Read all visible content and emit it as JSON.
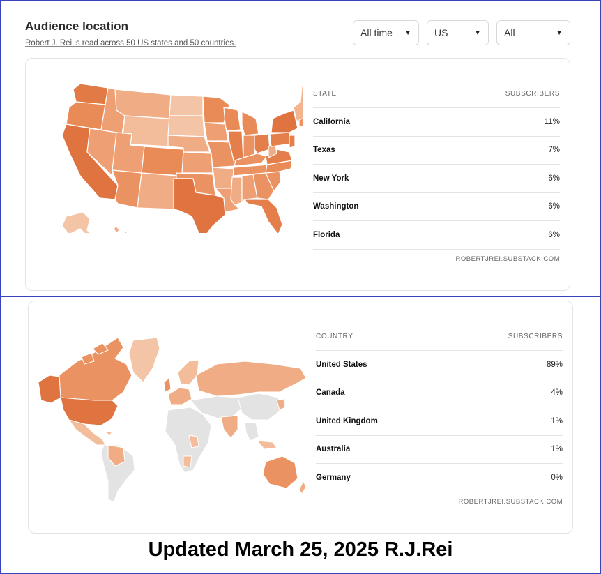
{
  "header": {
    "title": "Audience location",
    "subtitle": "Robert J. Rei is read across 50 US states and 50 countries."
  },
  "filters": [
    {
      "value": "All time"
    },
    {
      "value": "US"
    },
    {
      "value": "All"
    }
  ],
  "us_table": {
    "col_region": "STATE",
    "col_subs": "SUBSCRIBERS",
    "rows": [
      {
        "name": "California",
        "pct": "11%"
      },
      {
        "name": "Texas",
        "pct": "7%"
      },
      {
        "name": "New York",
        "pct": "6%"
      },
      {
        "name": "Washington",
        "pct": "6%"
      },
      {
        "name": "Florida",
        "pct": "6%"
      }
    ],
    "source": "ROBERTJREI.SUBSTACK.COM"
  },
  "world_table": {
    "col_region": "COUNTRY",
    "col_subs": "SUBSCRIBERS",
    "rows": [
      {
        "name": "United States",
        "pct": "89%"
      },
      {
        "name": "Canada",
        "pct": "4%"
      },
      {
        "name": "United Kingdom",
        "pct": "1%"
      },
      {
        "name": "Australia",
        "pct": "1%"
      },
      {
        "name": "Germany",
        "pct": "0%"
      }
    ],
    "source": "ROBERTJREI.SUBSTACK.COM"
  },
  "colors": {
    "accent_dark": "#e07440",
    "accent_mid": "#ea9262",
    "accent_light": "#f1b692",
    "accent_pale": "#f6cdb2",
    "no_data": "#e3e3e3",
    "frame": "#3a43b8"
  },
  "footer": "Updated March 25, 2025 R.J.Rei"
}
